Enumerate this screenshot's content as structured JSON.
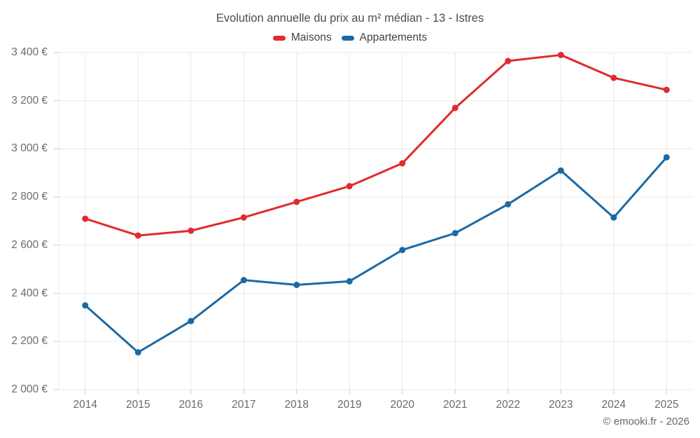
{
  "page": {
    "footer": "© emooki.fr - 2026"
  },
  "chart_data": {
    "type": "line",
    "title": "Evolution annuelle du prix au m² médian - 13 - Istres",
    "categories": [
      "2014",
      "2015",
      "2016",
      "2017",
      "2018",
      "2019",
      "2020",
      "2021",
      "2022",
      "2023",
      "2024",
      "2025"
    ],
    "series": [
      {
        "name": "Maisons",
        "color": "#e02a30",
        "values": [
          2710,
          2640,
          2660,
          2715,
          2780,
          2845,
          2940,
          3170,
          3365,
          3390,
          3295,
          3245
        ]
      },
      {
        "name": "Appartements",
        "color": "#1b69a5",
        "values": [
          2350,
          2155,
          2285,
          2455,
          2435,
          2450,
          2580,
          2650,
          2770,
          2910,
          2715,
          2965
        ]
      }
    ],
    "ylim": [
      2000,
      3400
    ],
    "y_axis": {
      "ticks": [
        {
          "value": 2000,
          "label": "2 000 €"
        },
        {
          "value": 2200,
          "label": "2 200 €"
        },
        {
          "value": 2400,
          "label": "2 400 €"
        },
        {
          "value": 2600,
          "label": "2 600 €"
        },
        {
          "value": 2800,
          "label": "2 800 €"
        },
        {
          "value": 3000,
          "label": "3 000 €"
        },
        {
          "value": 3200,
          "label": "3 200 €"
        },
        {
          "value": 3400,
          "label": "3 400 €"
        }
      ]
    },
    "grid": true,
    "legend_position": "top",
    "colors": {
      "grid": "#e9e9e9",
      "tick": "#c8c8c8",
      "axis_text": "#6b6b6b"
    }
  }
}
